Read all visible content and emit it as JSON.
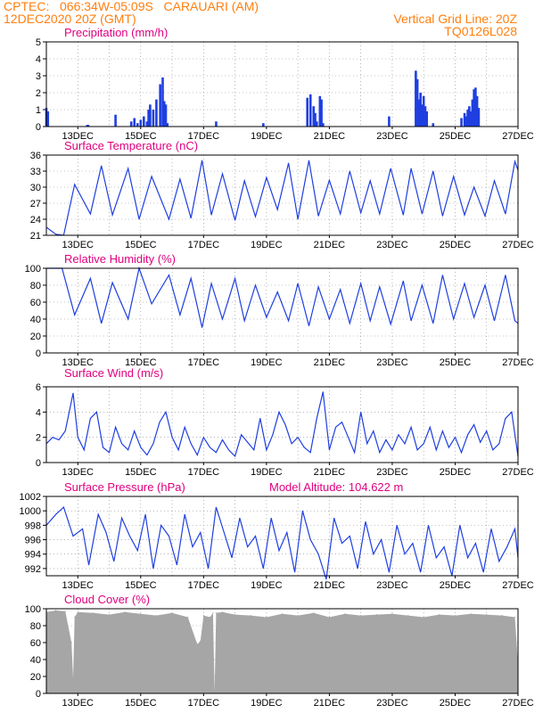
{
  "header": {
    "line1": "CPTEC:   066:34W-05:09S   CARAUARI (AM)",
    "line2": "12DEC2020 20Z (GMT)",
    "grid_note": "Vertical Grid Line: 20Z",
    "run_code": "TQ0126L028"
  },
  "colors": {
    "header": "#ff7f0e",
    "title": "#e0007f",
    "line": "#1f3fe0",
    "bar": "#1f3fe0",
    "cloud": "#a6a6a6",
    "grid": "#888888"
  },
  "chart_data": [
    {
      "type": "bar",
      "title": "Precipitation (mm/h)",
      "ylim": [
        0,
        5
      ],
      "yticks": [
        "0",
        "1",
        "2",
        "3",
        "4",
        "5"
      ],
      "xticks": [
        "13DEC",
        "15DEC",
        "17DEC",
        "19DEC",
        "21DEC",
        "23DEC",
        "25DEC",
        "27DEC"
      ],
      "x_days": [
        12.0,
        12.05,
        13.3,
        13.33,
        14.2,
        14.7,
        14.8,
        14.9,
        15.0,
        15.1,
        15.2,
        15.25,
        15.3,
        15.4,
        15.5,
        15.62,
        15.7,
        15.75,
        15.8,
        15.85,
        17.4,
        18.9,
        20.3,
        20.4,
        20.5,
        20.55,
        20.6,
        20.7,
        20.75,
        20.8,
        22.9,
        23.75,
        23.8,
        23.85,
        23.9,
        23.95,
        24.0,
        24.05,
        24.1,
        24.3,
        25.2,
        25.3,
        25.35,
        25.4,
        25.45,
        25.5,
        25.55,
        25.6,
        25.65,
        25.7,
        25.75
      ],
      "values": [
        1.1,
        0.9,
        0.1,
        0.1,
        0.7,
        0.3,
        0.5,
        0.2,
        0.4,
        0.6,
        0.3,
        1.0,
        1.3,
        1.0,
        1.6,
        2.5,
        2.9,
        1.5,
        1.3,
        0.2,
        0.3,
        0.2,
        1.7,
        1.9,
        1.2,
        0.8,
        0.3,
        1.8,
        1.6,
        0.2,
        0.6,
        3.3,
        2.8,
        1.6,
        2.0,
        1.3,
        1.8,
        1.2,
        0.9,
        0.2,
        0.5,
        0.8,
        0.6,
        1.0,
        1.2,
        0.9,
        1.6,
        2.2,
        2.3,
        1.8,
        1.1
      ]
    },
    {
      "type": "line",
      "title": "Surface Temperature (nC)",
      "ylim": [
        21,
        36
      ],
      "yticks": [
        "21",
        "24",
        "27",
        "30",
        "33",
        "36"
      ],
      "xticks": [
        "13DEC",
        "15DEC",
        "17DEC",
        "19DEC",
        "21DEC",
        "23DEC",
        "25DEC",
        "27DEC"
      ],
      "x_days": [
        12.0,
        12.3,
        12.55,
        12.9,
        13.4,
        13.75,
        14.1,
        14.6,
        14.95,
        15.35,
        15.9,
        16.25,
        16.6,
        16.95,
        17.25,
        17.6,
        18.0,
        18.3,
        18.65,
        19.0,
        19.35,
        19.7,
        20.0,
        20.35,
        20.65,
        21.0,
        21.35,
        21.65,
        22.0,
        22.3,
        22.6,
        22.95,
        23.35,
        23.6,
        23.95,
        24.3,
        24.6,
        24.95,
        25.3,
        25.6,
        25.95,
        26.25,
        26.6,
        26.9,
        27.0
      ],
      "values": [
        22.5,
        21.2,
        21.0,
        30.5,
        25.0,
        34.0,
        24.8,
        33.5,
        24.0,
        32.0,
        24.0,
        31.5,
        24.2,
        35.0,
        24.8,
        32.5,
        23.8,
        31.2,
        24.5,
        31.8,
        25.8,
        34.5,
        24.0,
        35.0,
        24.6,
        31.3,
        25.0,
        33.0,
        25.2,
        31.2,
        25.0,
        33.5,
        24.8,
        33.5,
        25.0,
        33.0,
        24.6,
        32.0,
        24.8,
        30.0,
        24.6,
        31.2,
        25.0,
        34.8,
        33.2
      ]
    },
    {
      "type": "line",
      "title": "Relative Humidity (%)",
      "ylim": [
        0,
        100
      ],
      "yticks": [
        "0",
        "20",
        "40",
        "60",
        "80",
        "100"
      ],
      "xticks": [
        "13DEC",
        "15DEC",
        "17DEC",
        "19DEC",
        "21DEC",
        "23DEC",
        "25DEC",
        "27DEC"
      ],
      "x_days": [
        12.0,
        12.5,
        12.9,
        13.4,
        13.75,
        14.1,
        14.6,
        14.95,
        15.35,
        15.9,
        16.25,
        16.6,
        16.95,
        17.25,
        17.6,
        18.0,
        18.3,
        18.65,
        19.0,
        19.35,
        19.7,
        20.0,
        20.35,
        20.65,
        21.0,
        21.35,
        21.65,
        22.0,
        22.3,
        22.6,
        22.95,
        23.35,
        23.6,
        23.95,
        24.3,
        24.6,
        24.95,
        25.3,
        25.6,
        25.95,
        26.25,
        26.6,
        26.9,
        27.0
      ],
      "values": [
        100,
        100,
        45,
        88,
        35,
        83,
        40,
        100,
        58,
        92,
        45,
        88,
        30,
        82,
        40,
        88,
        38,
        80,
        42,
        72,
        38,
        82,
        32,
        78,
        40,
        75,
        35,
        82,
        38,
        78,
        34,
        85,
        38,
        80,
        35,
        92,
        40,
        82,
        42,
        80,
        38,
        92,
        38,
        35
      ]
    },
    {
      "type": "line",
      "title": "Surface Wind (m/s)",
      "ylim": [
        0,
        6
      ],
      "yticks": [
        "0",
        "2",
        "4",
        "6"
      ],
      "xticks": [
        "13DEC",
        "15DEC",
        "17DEC",
        "19DEC",
        "21DEC",
        "23DEC",
        "25DEC",
        "27DEC"
      ],
      "x_days": [
        12.0,
        12.2,
        12.4,
        12.6,
        12.85,
        13.0,
        13.2,
        13.4,
        13.6,
        13.8,
        14.0,
        14.2,
        14.4,
        14.6,
        14.8,
        15.0,
        15.2,
        15.4,
        15.6,
        15.8,
        16.0,
        16.2,
        16.4,
        16.6,
        16.8,
        17.0,
        17.2,
        17.4,
        17.6,
        17.8,
        18.0,
        18.2,
        18.4,
        18.6,
        18.8,
        19.0,
        19.2,
        19.4,
        19.6,
        19.8,
        20.0,
        20.2,
        20.4,
        20.6,
        20.8,
        21.0,
        21.2,
        21.4,
        21.6,
        21.8,
        22.0,
        22.2,
        22.4,
        22.6,
        22.8,
        23.0,
        23.2,
        23.4,
        23.6,
        23.8,
        24.0,
        24.2,
        24.4,
        24.6,
        24.8,
        25.0,
        25.2,
        25.4,
        25.6,
        25.8,
        26.0,
        26.2,
        26.4,
        26.6,
        26.8,
        27.0
      ],
      "values": [
        1.5,
        2.0,
        1.8,
        2.5,
        5.5,
        2.0,
        1.0,
        3.5,
        4.0,
        1.2,
        0.8,
        2.8,
        1.5,
        1.0,
        2.5,
        1.2,
        0.6,
        1.5,
        3.2,
        4.0,
        2.0,
        1.0,
        2.8,
        1.5,
        0.6,
        2.0,
        1.2,
        0.8,
        1.8,
        1.0,
        0.5,
        2.2,
        1.6,
        1.0,
        3.5,
        1.0,
        2.2,
        4.0,
        3.0,
        1.5,
        2.0,
        1.2,
        0.8,
        3.5,
        5.6,
        1.0,
        2.8,
        3.2,
        2.0,
        0.8,
        4.0,
        1.5,
        2.5,
        0.8,
        1.8,
        1.0,
        2.2,
        1.5,
        2.8,
        1.0,
        1.5,
        2.8,
        1.0,
        2.5,
        1.2,
        2.0,
        0.8,
        2.2,
        3.0,
        1.6,
        2.5,
        1.0,
        1.5,
        3.5,
        4.0,
        0.5
      ]
    },
    {
      "type": "line",
      "title": "Surface Pressure (hPa)",
      "annotation": "Model Altitude: 104.622 m",
      "ylim": [
        991,
        1002
      ],
      "yticks": [
        "992",
        "994",
        "996",
        "998",
        "1000",
        "1002"
      ],
      "xticks": [
        "13DEC",
        "15DEC",
        "17DEC",
        "19DEC",
        "21DEC",
        "23DEC",
        "25DEC",
        "27DEC"
      ],
      "x_days": [
        12.0,
        12.3,
        12.55,
        12.85,
        13.15,
        13.35,
        13.65,
        13.9,
        14.15,
        14.4,
        14.65,
        14.9,
        15.15,
        15.4,
        15.65,
        15.9,
        16.15,
        16.4,
        16.65,
        16.9,
        17.15,
        17.4,
        17.65,
        17.9,
        18.15,
        18.4,
        18.65,
        18.9,
        19.15,
        19.4,
        19.65,
        19.9,
        20.15,
        20.4,
        20.65,
        20.9,
        21.15,
        21.4,
        21.65,
        21.9,
        22.15,
        22.4,
        22.65,
        22.9,
        23.15,
        23.4,
        23.65,
        23.9,
        24.15,
        24.4,
        24.65,
        24.9,
        25.15,
        25.4,
        25.65,
        25.9,
        26.15,
        26.4,
        26.65,
        26.9,
        27.0
      ],
      "values": [
        998.0,
        999.5,
        1000.5,
        996.5,
        997.5,
        992.5,
        999.5,
        997.0,
        993.0,
        999.0,
        996.5,
        994.5,
        999.5,
        992.0,
        998.0,
        996.5,
        992.5,
        999.5,
        995.0,
        997.0,
        992.0,
        1000.5,
        997.0,
        993.5,
        999.0,
        995.0,
        996.5,
        992.0,
        999.0,
        994.5,
        997.0,
        991.5,
        1000.0,
        996.0,
        994.0,
        990.5,
        999.0,
        995.5,
        996.5,
        992.0,
        998.5,
        994.0,
        996.0,
        991.5,
        998.0,
        994.0,
        995.5,
        991.5,
        998.0,
        993.5,
        995.0,
        991.0,
        998.0,
        993.5,
        995.5,
        991.5,
        997.5,
        993.0,
        995.0,
        997.5,
        993.5
      ]
    },
    {
      "type": "area",
      "title": "Cloud Cover (%)",
      "ylim": [
        0,
        100
      ],
      "yticks": [
        "0",
        "20",
        "40",
        "60",
        "80",
        "100"
      ],
      "xticks": [
        "13DEC",
        "15DEC",
        "17DEC",
        "19DEC",
        "21DEC",
        "23DEC",
        "25DEC",
        "27DEC"
      ],
      "x_days": [
        12.0,
        12.3,
        12.6,
        12.8,
        12.85,
        12.9,
        13.0,
        13.5,
        14.0,
        14.5,
        15.0,
        15.5,
        16.0,
        16.5,
        16.8,
        16.9,
        17.0,
        17.2,
        17.3,
        17.35,
        17.4,
        17.6,
        18.0,
        18.5,
        19.0,
        19.5,
        20.0,
        20.5,
        21.0,
        21.5,
        22.0,
        22.5,
        23.0,
        23.5,
        24.0,
        24.5,
        25.0,
        25.5,
        26.0,
        26.5,
        26.9,
        27.0
      ],
      "values": [
        96,
        98,
        97,
        60,
        18,
        90,
        96,
        95,
        93,
        96,
        94,
        92,
        95,
        90,
        58,
        62,
        92,
        90,
        95,
        2,
        95,
        96,
        93,
        92,
        90,
        94,
        92,
        95,
        90,
        94,
        92,
        93,
        94,
        92,
        90,
        93,
        92,
        94,
        93,
        92,
        90,
        35
      ]
    }
  ]
}
